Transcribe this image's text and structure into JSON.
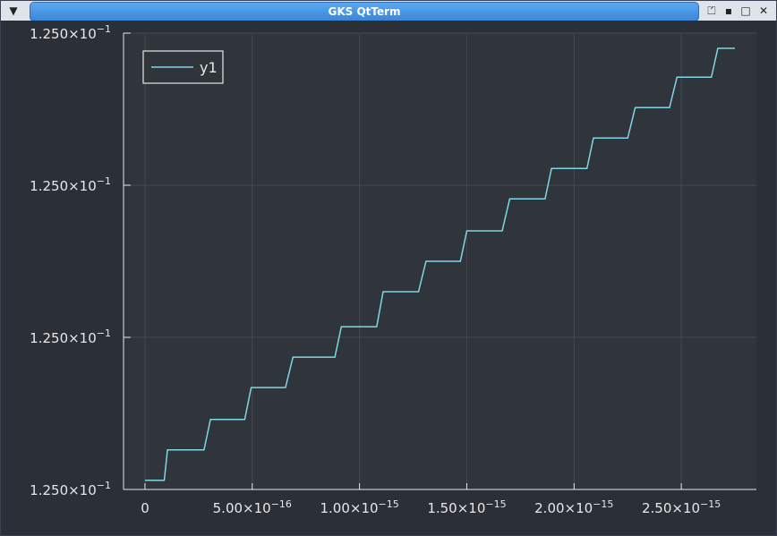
{
  "window": {
    "title": "GKS QtTerm",
    "menu_icon": "menu-down-icon",
    "controls": [
      "shade-icon",
      "sticky-icon",
      "maximize-icon",
      "close-icon"
    ]
  },
  "colors": {
    "background": "#2b2f38",
    "plot_area": "#30343b",
    "series": "#7fd6e6",
    "text": "#e8e8e8",
    "grid": "#444a52"
  },
  "chart_data": {
    "type": "line",
    "title": "",
    "xlabel": "",
    "ylabel": "",
    "grid": true,
    "legend_position": "top-left",
    "xlim": [
      -1e-16,
      2.85e-15
    ],
    "ylim": [
      0,
      3
    ],
    "x_ticks": [
      {
        "value": 0,
        "mantissa": "0",
        "exp": ""
      },
      {
        "value": 5e-16,
        "mantissa": "5.00×10",
        "exp": "−16"
      },
      {
        "value": 1e-15,
        "mantissa": "1.00×10",
        "exp": "−15"
      },
      {
        "value": 1.5e-15,
        "mantissa": "1.50×10",
        "exp": "−15"
      },
      {
        "value": 2e-15,
        "mantissa": "2.00×10",
        "exp": "−15"
      },
      {
        "value": 2.5e-15,
        "mantissa": "2.50×10",
        "exp": "−15"
      }
    ],
    "y_ticks": [
      {
        "value": 0,
        "mantissa": "1.250×10",
        "exp": "−1"
      },
      {
        "value": 1,
        "mantissa": "1.250×10",
        "exp": "−1"
      },
      {
        "value": 2,
        "mantissa": "1.250×10",
        "exp": "−1"
      },
      {
        "value": 3,
        "mantissa": "1.250×10",
        "exp": "−1"
      }
    ],
    "series": [
      {
        "name": "y1",
        "x": [
          0,
          9e-17,
          1.05e-16,
          2.75e-16,
          3.05e-16,
          4.65e-16,
          4.95e-16,
          6.55e-16,
          6.9e-16,
          8.85e-16,
          9.15e-16,
          1.08e-15,
          1.11e-15,
          1.275e-15,
          1.31e-15,
          1.47e-15,
          1.5e-15,
          1.665e-15,
          1.7e-15,
          1.865e-15,
          1.895e-15,
          2.06e-15,
          2.09e-15,
          2.25e-15,
          2.285e-15,
          2.445e-15,
          2.48e-15,
          2.64e-15,
          2.67e-15,
          2.75e-15
        ],
        "y": [
          0.06,
          0.06,
          0.26,
          0.26,
          0.46,
          0.46,
          0.67,
          0.67,
          0.87,
          0.87,
          1.07,
          1.07,
          1.3,
          1.3,
          1.5,
          1.5,
          1.7,
          1.7,
          1.91,
          1.91,
          2.11,
          2.11,
          2.31,
          2.31,
          2.51,
          2.51,
          2.71,
          2.71,
          2.9,
          2.9
        ]
      }
    ]
  }
}
